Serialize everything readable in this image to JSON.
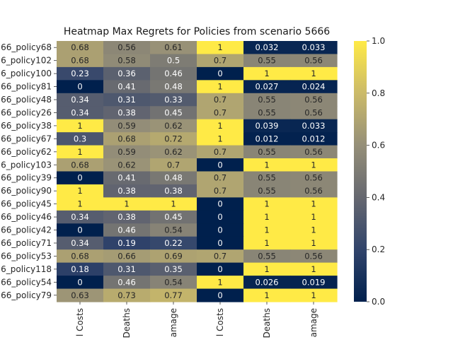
{
  "chart_data": {
    "type": "heatmap",
    "title": "Heatmap Max Regrets for Policies from scenario 5666",
    "xlabel": "",
    "ylabel": "",
    "columns": [
      "l Costs",
      "Deaths",
      "amage",
      "l Costs",
      "Deaths",
      "amage"
    ],
    "rows": [
      "66_policy68",
      "6_policy102",
      "6_policy100",
      "66_policy81",
      "66_policy48",
      "66_policy26",
      "66_policy38",
      "66_policy67",
      "66_policy62",
      "6_policy103",
      "66_policy39",
      "66_policy90",
      "66_policy45",
      "66_policy46",
      "66_policy42",
      "66_policy71",
      "66_policy53",
      "6_policy118",
      "66_policy54",
      "66_policy79"
    ],
    "values": [
      [
        0.68,
        0.56,
        0.61,
        1,
        0.032,
        0.033
      ],
      [
        0.68,
        0.58,
        0.5,
        0.7,
        0.55,
        0.56
      ],
      [
        0.23,
        0.36,
        0.46,
        0,
        1,
        1
      ],
      [
        0,
        0.41,
        0.48,
        1,
        0.027,
        0.024
      ],
      [
        0.34,
        0.31,
        0.33,
        0.7,
        0.55,
        0.56
      ],
      [
        0.34,
        0.38,
        0.45,
        0.7,
        0.55,
        0.56
      ],
      [
        1,
        0.59,
        0.62,
        1,
        0.039,
        0.033
      ],
      [
        0.3,
        0.68,
        0.72,
        1,
        0.012,
        0.012
      ],
      [
        1,
        0.59,
        0.62,
        0.7,
        0.55,
        0.56
      ],
      [
        0.68,
        0.62,
        0.7,
        0,
        1,
        1
      ],
      [
        0,
        0.41,
        0.48,
        0.7,
        0.55,
        0.56
      ],
      [
        1,
        0.38,
        0.38,
        0.7,
        0.55,
        0.56
      ],
      [
        1,
        1,
        1,
        0,
        1,
        1
      ],
      [
        0.34,
        0.38,
        0.45,
        0,
        1,
        1
      ],
      [
        0,
        0.46,
        0.54,
        0,
        1,
        1
      ],
      [
        0.34,
        0.19,
        0.22,
        0,
        1,
        1
      ],
      [
        0.68,
        0.66,
        0.69,
        0.7,
        0.55,
        0.56
      ],
      [
        0.18,
        0.31,
        0.35,
        0,
        1,
        1
      ],
      [
        0,
        0.46,
        0.54,
        1,
        0.026,
        0.019
      ],
      [
        0.63,
        0.73,
        0.77,
        0,
        1,
        1
      ]
    ],
    "colorbar": {
      "colormap": "cividis",
      "range": [
        0,
        1
      ],
      "ticks": [
        "0.0",
        "0.2",
        "0.4",
        "0.6",
        "0.8",
        "1.0"
      ]
    },
    "colors": [
      "#00204d",
      "#31446b",
      "#666870",
      "#958f78",
      "#cbba69",
      "#ffea46"
    ]
  }
}
